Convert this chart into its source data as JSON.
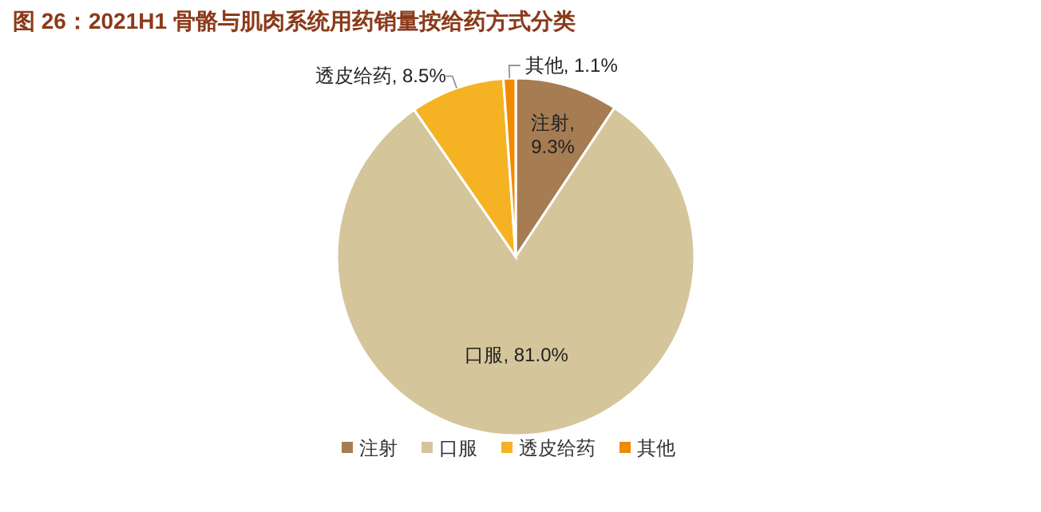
{
  "chart_data": {
    "type": "pie",
    "title": "图 26：2021H1 骨骼与肌肉系统用药销量按给药方式分类",
    "categories": [
      "注射",
      "口服",
      "透皮给药",
      "其他"
    ],
    "values": [
      9.3,
      81.0,
      8.5,
      1.1
    ],
    "value_labels": [
      "注射, 9.3%",
      "口服, 81.0%",
      "透皮给药, 8.5%",
      "其他, 1.1%"
    ],
    "colors": [
      "#a67c52",
      "#d5c59a",
      "#f5b324",
      "#f08a00"
    ],
    "legend": "bottom"
  }
}
